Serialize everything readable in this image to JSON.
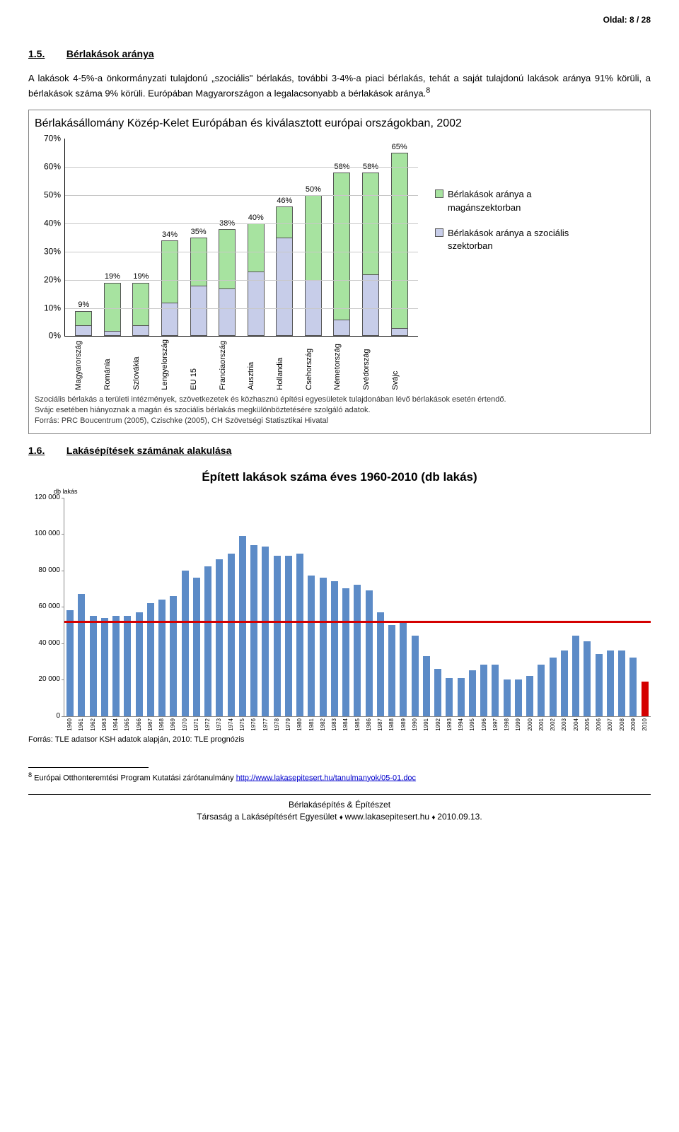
{
  "page_header": "Oldal: 8 / 28",
  "section1": {
    "number": "1.5.",
    "title": "Bérlakások aránya",
    "paragraph": "A lakások 4-5%-a önkormányzati tulajdonú „szociális\" bérlakás, további 3-4%-a piaci bérlakás, tehát a saját tulajdonú lakások aránya 91% körüli, a bérlakások száma 9% körüli. Európában Magyarországon a legalacsonyabb a bérlakások aránya.",
    "footnote_mark": "8"
  },
  "chart1": {
    "type": "stacked-bar",
    "title": "Bérlakásállomány Közép-Kelet Európában és kiválasztott európai országokban, 2002",
    "ylim": [
      0,
      70
    ],
    "ytick_step": 10,
    "ytick_suffix": "%",
    "categories": [
      "Magyarország",
      "Románia",
      "Szlovákia",
      "Lengyelország",
      "EU 15",
      "Franciaország",
      "Ausztria",
      "Hollandia",
      "Csehország",
      "Németország",
      "Svédország",
      "Svájc"
    ],
    "social": [
      4,
      2,
      4,
      12,
      18,
      17,
      23,
      35,
      20,
      6,
      22,
      3
    ],
    "private": [
      5,
      17,
      15,
      22,
      17,
      21,
      17,
      11,
      30,
      52,
      36,
      62
    ],
    "totals_label": [
      "9%",
      "19%",
      "19%",
      "34%",
      "35%",
      "38%",
      "40%",
      "46%",
      "50%",
      "58%",
      "58%",
      "65%"
    ],
    "colors": {
      "private": "#a7e3a0",
      "social": "#c7cde9",
      "border": "#555555"
    },
    "legend": {
      "private": "Bérlakások aránya a magánszektorban",
      "social": "Bérlakások aránya a szociális szektorban"
    },
    "notes": [
      "Szociális bérlakás a területi intézmények, szövetkezetek és közhasznú építési egyesületek tulajdonában lévő bérlakások esetén értendő.",
      "Svájc esetében hiányoznak a magán és szociális bérlakás megkülönböztetésére szolgáló adatok.",
      "Forrás: PRC Boucentrum (2005), Czischke (2005), CH Szövetségi Statisztikai Hivatal"
    ],
    "title_fontsize": 16,
    "label_fontsize": 12,
    "background_color": "#ffffff",
    "grid_color": "#c8c8c8"
  },
  "section2": {
    "number": "1.6.",
    "title": "Lakásépítések számának alakulása"
  },
  "chart2": {
    "type": "bar",
    "title": "Épített lakások száma éves 1960-2010 (db lakás)",
    "ylabel_unit": "db lakás",
    "ylim": [
      0,
      120000
    ],
    "ytick_step": 20000,
    "years": [
      1960,
      1961,
      1962,
      1963,
      1964,
      1965,
      1966,
      1967,
      1968,
      1969,
      1970,
      1971,
      1972,
      1973,
      1974,
      1975,
      1976,
      1977,
      1978,
      1979,
      1980,
      1981,
      1982,
      1983,
      1984,
      1985,
      1986,
      1987,
      1988,
      1989,
      1990,
      1991,
      1992,
      1993,
      1994,
      1995,
      1996,
      1997,
      1998,
      1999,
      2000,
      2001,
      2002,
      2003,
      2004,
      2005,
      2006,
      2007,
      2008,
      2009,
      2010
    ],
    "values": [
      58000,
      67000,
      55000,
      54000,
      55000,
      55000,
      57000,
      62000,
      64000,
      66000,
      80000,
      76000,
      82000,
      86000,
      89000,
      99000,
      94000,
      93000,
      88000,
      88000,
      89000,
      77000,
      76000,
      74000,
      70000,
      72000,
      69000,
      57000,
      50000,
      51000,
      44000,
      33000,
      26000,
      21000,
      21000,
      25000,
      28000,
      28000,
      20000,
      20000,
      22000,
      28000,
      32000,
      36000,
      44000,
      41000,
      34000,
      36000,
      36000,
      32000,
      19000
    ],
    "baseline_value": 51000,
    "bar_color": "#5c8bc7",
    "last_bar_color": "#d40000",
    "baseline_color": "#d40000",
    "background_color": "#ffffff",
    "label_fontsize": 10,
    "source": "Forrás: TLE adatsor KSH adatok alapján, 2010: TLE prognózis"
  },
  "footnote": {
    "mark": "8",
    "text": "Európai Otthonteremtési Program Kutatási zárótanulmány ",
    "link_text": "http://www.lakasepitesert.hu/tanulmanyok/05-01.doc"
  },
  "footer": {
    "line1": "Bérlakásépítés & Építészet",
    "line2_a": "Társaság a Lakásépítésért Egyesület",
    "line2_b": "www.lakasepitesert.hu",
    "line2_c": "2010.09.13."
  }
}
